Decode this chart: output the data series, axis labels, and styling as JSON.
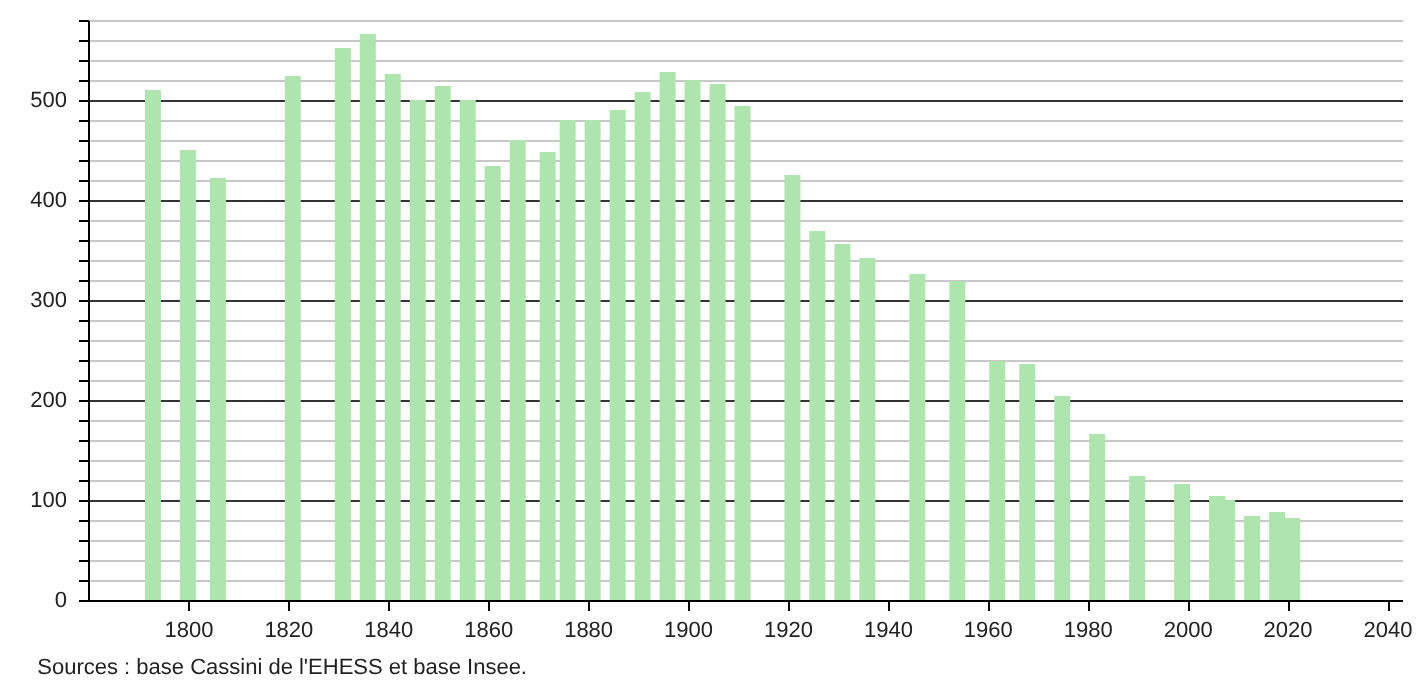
{
  "chart_data": {
    "type": "bar",
    "annotations": [
      "Sources : base Cassini de l'EHESS et base Insee."
    ],
    "x": [
      1793,
      1800,
      1806,
      1821,
      1831,
      1836,
      1841,
      1846,
      1851,
      1856,
      1861,
      1866,
      1872,
      1876,
      1881,
      1886,
      1891,
      1896,
      1901,
      1906,
      1911,
      1921,
      1926,
      1931,
      1936,
      1946,
      1954,
      1962,
      1968,
      1975,
      1982,
      1990,
      1999,
      2006,
      2008,
      2013,
      2018,
      2021
    ],
    "series": [
      {
        "color": "#aee4ae",
        "values": [
          510,
          450,
          422,
          524,
          552,
          566,
          526,
          500,
          514,
          500,
          434,
          460,
          448,
          480,
          480,
          490,
          508,
          528,
          520,
          516,
          494,
          425,
          369,
          356,
          342,
          326,
          319,
          239,
          236,
          204,
          166,
          124,
          116,
          104,
          100,
          84,
          88,
          82
        ]
      }
    ],
    "xlim": [
      1780,
      2043
    ],
    "xticks": [
      1800,
      1820,
      1840,
      1860,
      1880,
      1900,
      1920,
      1940,
      1960,
      1980,
      2000,
      2020,
      2040
    ],
    "ylim": [
      0,
      580
    ],
    "yticks": [
      0,
      {
        "value": 20,
        "label": null
      },
      {
        "value": 40,
        "label": null
      },
      {
        "value": 60,
        "label": null
      },
      {
        "value": 80,
        "label": null
      },
      100,
      {
        "value": 120,
        "label": null
      },
      {
        "value": 140,
        "label": null
      },
      {
        "value": 160,
        "label": null
      },
      {
        "value": 180,
        "label": null
      },
      200,
      {
        "value": 220,
        "label": null
      },
      {
        "value": 240,
        "label": null
      },
      {
        "value": 260,
        "label": null
      },
      {
        "value": 280,
        "label": null
      },
      300,
      {
        "value": 320,
        "label": null
      },
      {
        "value": 340,
        "label": null
      },
      {
        "value": 360,
        "label": null
      },
      {
        "value": 380,
        "label": null
      },
      400,
      {
        "value": 420,
        "label": null
      },
      {
        "value": 440,
        "label": null
      },
      {
        "value": 460,
        "label": null
      },
      {
        "value": 480,
        "label": null
      },
      500,
      {
        "value": 520,
        "label": null
      },
      {
        "value": 540,
        "label": null
      },
      {
        "value": 560,
        "label": null
      },
      {
        "value": 580,
        "label": null
      }
    ],
    "grid": "y"
  }
}
